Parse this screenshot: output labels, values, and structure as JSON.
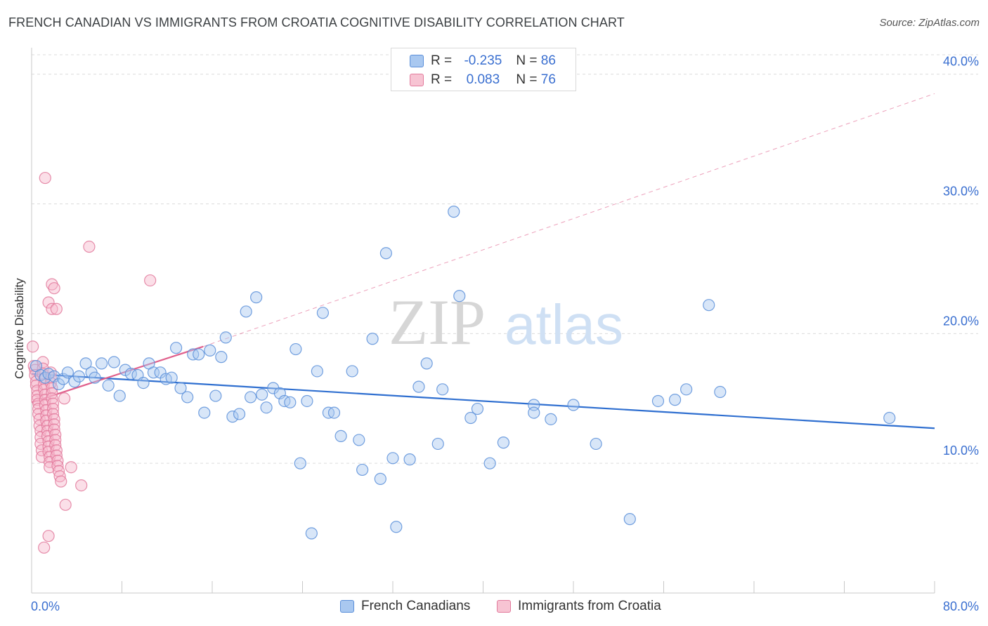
{
  "title": "FRENCH CANADIAN VS IMMIGRANTS FROM CROATIA COGNITIVE DISABILITY CORRELATION CHART",
  "source": "Source: ZipAtlas.com",
  "watermark": {
    "zip": "ZIP",
    "atlas": "atlas"
  },
  "legend_top": [
    {
      "r_label": "R =",
      "r_value": "-0.235",
      "n_label": "N =",
      "n_value": "86"
    },
    {
      "r_label": "R =",
      "r_value": "0.083",
      "n_label": "N =",
      "n_value": "76"
    }
  ],
  "legend_bottom": [
    "French Canadians",
    "Immigrants from Croatia"
  ],
  "colors": {
    "blue_fill": "#a9c8f0",
    "blue_stroke": "#5b8fd9",
    "blue_line": "#2f6fd0",
    "pink_fill": "#f7b8cc",
    "pink_stroke": "#e27a9c",
    "pink_line": "#e0608c",
    "axis_text": "#3a6fd0",
    "grid": "#dcdcdc"
  },
  "chart_data": {
    "type": "scatter",
    "title": "FRENCH CANADIAN VS IMMIGRANTS FROM CROATIA COGNITIVE DISABILITY CORRELATION CHART",
    "xlabel": "",
    "ylabel": "Cognitive Disability",
    "xlim": [
      0,
      80
    ],
    "ylim": [
      0,
      41.5
    ],
    "x_tick_labels": [
      "0.0%",
      "80.0%"
    ],
    "y_ticks": [
      10,
      20,
      30,
      40
    ],
    "y_tick_labels": [
      "10.0%",
      "20.0%",
      "30.0%",
      "40.0%"
    ],
    "grid": true,
    "series": [
      {
        "name": "French Canadians",
        "points": [
          [
            0.4,
            17.5
          ],
          [
            0.8,
            16.8
          ],
          [
            1.2,
            16.6
          ],
          [
            1.5,
            16.9
          ],
          [
            2.0,
            16.7
          ],
          [
            2.4,
            16.1
          ],
          [
            2.8,
            16.5
          ],
          [
            3.2,
            17.0
          ],
          [
            3.8,
            16.3
          ],
          [
            4.2,
            16.7
          ],
          [
            4.8,
            17.7
          ],
          [
            5.3,
            17.0
          ],
          [
            5.6,
            16.6
          ],
          [
            6.2,
            17.7
          ],
          [
            6.8,
            16.0
          ],
          [
            7.3,
            17.8
          ],
          [
            7.8,
            15.2
          ],
          [
            8.3,
            17.2
          ],
          [
            8.8,
            16.9
          ],
          [
            9.4,
            16.8
          ],
          [
            9.9,
            16.2
          ],
          [
            10.4,
            17.7
          ],
          [
            10.8,
            17.0
          ],
          [
            11.4,
            17.0
          ],
          [
            11.9,
            16.5
          ],
          [
            12.4,
            16.6
          ],
          [
            12.8,
            18.9
          ],
          [
            13.2,
            15.8
          ],
          [
            13.8,
            15.1
          ],
          [
            14.3,
            18.4
          ],
          [
            14.8,
            18.4
          ],
          [
            15.3,
            13.9
          ],
          [
            15.8,
            18.7
          ],
          [
            16.3,
            15.2
          ],
          [
            16.8,
            18.2
          ],
          [
            17.2,
            19.7
          ],
          [
            17.8,
            13.6
          ],
          [
            18.4,
            13.8
          ],
          [
            19.0,
            21.7
          ],
          [
            19.4,
            15.1
          ],
          [
            19.9,
            22.8
          ],
          [
            20.4,
            15.3
          ],
          [
            20.8,
            14.3
          ],
          [
            21.4,
            15.8
          ],
          [
            22.0,
            15.4
          ],
          [
            22.4,
            14.8
          ],
          [
            22.9,
            14.7
          ],
          [
            23.4,
            18.8
          ],
          [
            23.8,
            10.0
          ],
          [
            24.4,
            14.8
          ],
          [
            24.8,
            4.6
          ],
          [
            25.3,
            17.1
          ],
          [
            25.8,
            21.6
          ],
          [
            26.3,
            13.9
          ],
          [
            26.8,
            13.9
          ],
          [
            27.4,
            12.1
          ],
          [
            28.4,
            17.1
          ],
          [
            29.0,
            11.8
          ],
          [
            29.3,
            9.5
          ],
          [
            30.2,
            19.6
          ],
          [
            30.9,
            8.8
          ],
          [
            31.4,
            26.2
          ],
          [
            32.0,
            10.4
          ],
          [
            32.3,
            5.1
          ],
          [
            33.5,
            10.3
          ],
          [
            34.3,
            15.9
          ],
          [
            35.0,
            17.7
          ],
          [
            36.0,
            11.5
          ],
          [
            36.4,
            15.7
          ],
          [
            37.4,
            29.4
          ],
          [
            37.9,
            22.9
          ],
          [
            38.9,
            13.5
          ],
          [
            39.5,
            14.2
          ],
          [
            40.6,
            10.0
          ],
          [
            41.8,
            11.6
          ],
          [
            44.5,
            14.5
          ],
          [
            44.5,
            13.9
          ],
          [
            46.0,
            13.4
          ],
          [
            48.0,
            14.5
          ],
          [
            50.0,
            11.5
          ],
          [
            53.0,
            5.7
          ],
          [
            55.5,
            14.8
          ],
          [
            57.0,
            14.9
          ],
          [
            58.0,
            15.7
          ],
          [
            60.0,
            22.2
          ],
          [
            61.0,
            15.5
          ],
          [
            76.0,
            13.5
          ]
        ]
      },
      {
        "name": "Immigrants from Croatia",
        "points": [
          [
            0.1,
            19.0
          ],
          [
            0.2,
            17.5
          ],
          [
            0.3,
            17.2
          ],
          [
            0.3,
            16.8
          ],
          [
            0.4,
            16.3
          ],
          [
            0.4,
            16.0
          ],
          [
            0.5,
            15.6
          ],
          [
            0.5,
            15.2
          ],
          [
            0.5,
            14.9
          ],
          [
            0.6,
            14.6
          ],
          [
            0.6,
            14.2
          ],
          [
            0.6,
            13.8
          ],
          [
            0.7,
            13.4
          ],
          [
            0.7,
            12.9
          ],
          [
            0.8,
            12.5
          ],
          [
            0.8,
            12.0
          ],
          [
            0.8,
            11.5
          ],
          [
            0.9,
            11.0
          ],
          [
            0.9,
            10.5
          ],
          [
            1.0,
            17.8
          ],
          [
            1.0,
            17.3
          ],
          [
            1.0,
            16.9
          ],
          [
            1.1,
            16.5
          ],
          [
            1.1,
            16.1
          ],
          [
            1.1,
            15.7
          ],
          [
            1.2,
            15.3
          ],
          [
            1.2,
            14.9
          ],
          [
            1.2,
            14.5
          ],
          [
            1.3,
            14.1
          ],
          [
            1.3,
            13.7
          ],
          [
            1.3,
            13.3
          ],
          [
            1.4,
            12.9
          ],
          [
            1.4,
            12.5
          ],
          [
            1.4,
            12.1
          ],
          [
            1.5,
            11.7
          ],
          [
            1.5,
            11.3
          ],
          [
            1.5,
            10.9
          ],
          [
            1.6,
            10.5
          ],
          [
            1.6,
            10.1
          ],
          [
            1.6,
            9.7
          ],
          [
            1.7,
            17.0
          ],
          [
            1.7,
            16.6
          ],
          [
            1.7,
            16.2
          ],
          [
            1.8,
            15.8
          ],
          [
            1.8,
            15.4
          ],
          [
            1.8,
            15.0
          ],
          [
            1.9,
            14.6
          ],
          [
            1.9,
            14.2
          ],
          [
            1.9,
            13.8
          ],
          [
            2.0,
            13.4
          ],
          [
            2.0,
            13.0
          ],
          [
            2.0,
            12.6
          ],
          [
            2.1,
            12.2
          ],
          [
            2.1,
            11.8
          ],
          [
            2.1,
            11.4
          ],
          [
            2.2,
            11.0
          ],
          [
            2.2,
            10.6
          ],
          [
            2.3,
            10.2
          ],
          [
            2.3,
            9.8
          ],
          [
            2.4,
            9.4
          ],
          [
            2.5,
            9.0
          ],
          [
            2.6,
            8.6
          ],
          [
            1.2,
            32.0
          ],
          [
            1.5,
            22.4
          ],
          [
            1.8,
            23.8
          ],
          [
            2.0,
            23.5
          ],
          [
            1.8,
            21.9
          ],
          [
            2.2,
            21.9
          ],
          [
            2.9,
            15.0
          ],
          [
            3.0,
            6.8
          ],
          [
            3.5,
            9.7
          ],
          [
            4.4,
            8.3
          ],
          [
            5.1,
            26.7
          ],
          [
            10.5,
            24.1
          ],
          [
            1.5,
            4.4
          ],
          [
            1.1,
            3.5
          ]
        ]
      }
    ],
    "trend_lines": [
      {
        "series": "French Canadians",
        "x": [
          0,
          80
        ],
        "y": [
          16.9,
          12.7
        ]
      },
      {
        "series": "Immigrants from Croatia",
        "x": [
          0,
          15.2
        ],
        "y": [
          14.7,
          19.0
        ]
      },
      {
        "series": "Immigrants from Croatia",
        "style": "dashed",
        "x": [
          15.2,
          80
        ],
        "y": [
          19.0,
          38.5
        ]
      }
    ]
  },
  "axis_labels": {
    "y_title": "Cognitive Disability"
  }
}
